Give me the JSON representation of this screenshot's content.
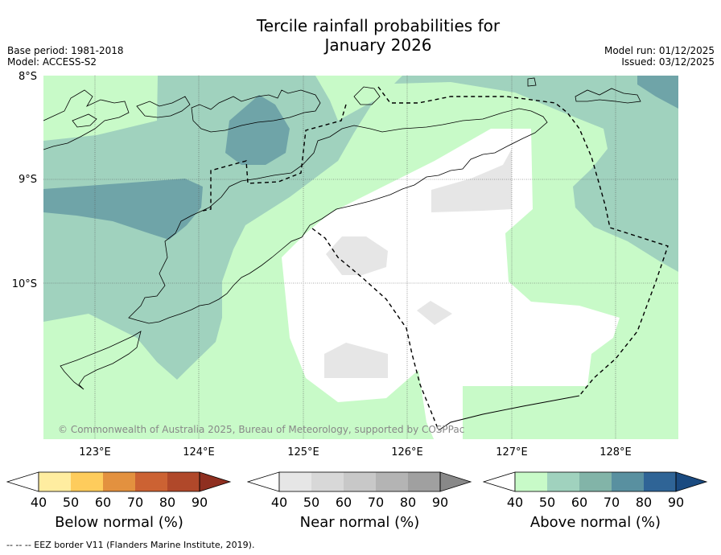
{
  "title": {
    "line1": "Tercile rainfall probabilities for",
    "line2": "January 2026"
  },
  "meta": {
    "base_period": "Base period: 1981-2018",
    "model": "Model: ACCESS-S2",
    "model_run": "Model run: 01/12/2025",
    "issued": "Issued: 03/12/2025"
  },
  "map": {
    "lat_labels": [
      "8°S",
      "9°S",
      "10°S"
    ],
    "lon_labels": [
      "123°E",
      "124°E",
      "125°E",
      "126°E",
      "127°E",
      "128°E"
    ],
    "copyright": "© Commonwealth of Australia 2025, Bureau of Meteorology, supported by COSPPac",
    "colors": {
      "near_normal_light": "#e6e6e6",
      "above_40": "#c8fac8",
      "above_50": "#a0d2be",
      "above_60": "#6fa4a8",
      "background": "#ffffff"
    }
  },
  "colorbars": [
    {
      "label": "Below normal (%)",
      "ticks": [
        "40",
        "50",
        "60",
        "70",
        "80",
        "90"
      ],
      "colors": [
        "#ffffff",
        "#ffeda0",
        "#fecc5c",
        "#e3913f",
        "#cc6233",
        "#b0482a",
        "#8f2f20"
      ]
    },
    {
      "label": "Near normal (%)",
      "ticks": [
        "40",
        "50",
        "60",
        "70",
        "80",
        "90"
      ],
      "colors": [
        "#ffffff",
        "#e6e6e6",
        "#d8d8d8",
        "#c8c8c8",
        "#b4b4b4",
        "#a0a0a0",
        "#888888"
      ]
    },
    {
      "label": "Above normal (%)",
      "ticks": [
        "40",
        "50",
        "60",
        "70",
        "80",
        "90"
      ],
      "colors": [
        "#ffffff",
        "#c8fac8",
        "#a0d2be",
        "#82b4a8",
        "#5990a0",
        "#2f6496",
        "#1a4a80"
      ]
    }
  ],
  "footnote": "--  --  -- EEZ border V11 (Flanders Marine Institute, 2019)."
}
